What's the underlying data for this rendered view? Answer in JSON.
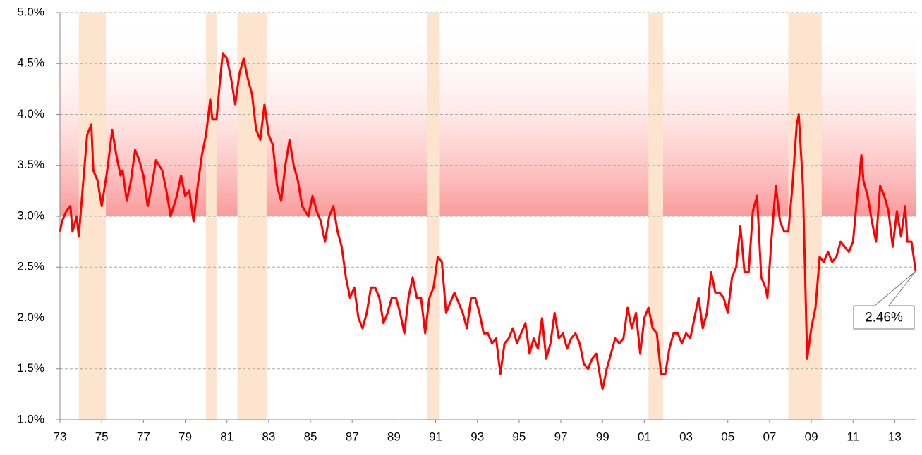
{
  "chart_data": {
    "type": "line",
    "xlim": [
      1973,
      2014
    ],
    "xticks": [
      {
        "value": 1973,
        "label": "73"
      },
      {
        "value": 1975,
        "label": "75"
      },
      {
        "value": 1977,
        "label": "77"
      },
      {
        "value": 1979,
        "label": "79"
      },
      {
        "value": 1981,
        "label": "81"
      },
      {
        "value": 1983,
        "label": "83"
      },
      {
        "value": 1985,
        "label": "85"
      },
      {
        "value": 1987,
        "label": "87"
      },
      {
        "value": 1989,
        "label": "89"
      },
      {
        "value": 1991,
        "label": "91"
      },
      {
        "value": 1993,
        "label": "93"
      },
      {
        "value": 1995,
        "label": "95"
      },
      {
        "value": 1997,
        "label": "97"
      },
      {
        "value": 1999,
        "label": "99"
      },
      {
        "value": 2001,
        "label": "01"
      },
      {
        "value": 2003,
        "label": "03"
      },
      {
        "value": 2005,
        "label": "05"
      },
      {
        "value": 2007,
        "label": "07"
      },
      {
        "value": 2009,
        "label": "09"
      },
      {
        "value": 2011,
        "label": "11"
      },
      {
        "value": 2013,
        "label": "13"
      }
    ],
    "ylim": [
      1.0,
      5.0
    ],
    "yticks": [
      {
        "value": 1.0,
        "label": "1.0%"
      },
      {
        "value": 1.5,
        "label": "1.5%"
      },
      {
        "value": 2.0,
        "label": "2.0%"
      },
      {
        "value": 2.5,
        "label": "2.5%"
      },
      {
        "value": 3.0,
        "label": "3.0%"
      },
      {
        "value": 3.5,
        "label": "3.5%"
      },
      {
        "value": 4.0,
        "label": "4.0%"
      },
      {
        "value": 4.5,
        "label": "4.5%"
      },
      {
        "value": 5.0,
        "label": "5.0%"
      }
    ],
    "grid": true,
    "highlight_above": 3.0,
    "recessions": [
      [
        1973.9,
        1975.2
      ],
      [
        1980.0,
        1980.5
      ],
      [
        1981.5,
        1982.9
      ],
      [
        1990.6,
        1991.2
      ],
      [
        2001.2,
        2001.9
      ],
      [
        2007.9,
        2009.5
      ]
    ],
    "recession_color": "#fde4cf",
    "annotation": {
      "label": "2.46%",
      "x": 2014.0,
      "y": 2.46
    },
    "series": [
      {
        "color": "#ff0000",
        "x": [
          1973.0,
          1973.1,
          1973.3,
          1973.5,
          1973.6,
          1973.8,
          1973.9,
          1974.1,
          1974.3,
          1974.5,
          1974.6,
          1974.8,
          1975.0,
          1975.3,
          1975.5,
          1975.7,
          1975.9,
          1976.0,
          1976.2,
          1976.4,
          1976.6,
          1976.8,
          1977.0,
          1977.2,
          1977.4,
          1977.6,
          1977.9,
          1978.1,
          1978.3,
          1978.6,
          1978.8,
          1979.0,
          1979.2,
          1979.4,
          1979.6,
          1979.8,
          1980.0,
          1980.2,
          1980.3,
          1980.5,
          1980.7,
          1980.8,
          1981.0,
          1981.2,
          1981.4,
          1981.6,
          1981.8,
          1982.0,
          1982.2,
          1982.4,
          1982.6,
          1982.8,
          1983.0,
          1983.2,
          1983.4,
          1983.6,
          1983.8,
          1984.0,
          1984.2,
          1984.4,
          1984.6,
          1984.9,
          1985.1,
          1985.3,
          1985.5,
          1985.7,
          1985.9,
          1986.1,
          1986.3,
          1986.5,
          1986.7,
          1986.9,
          1987.1,
          1987.3,
          1987.5,
          1987.7,
          1987.9,
          1988.1,
          1988.3,
          1988.5,
          1988.7,
          1988.9,
          1989.1,
          1989.3,
          1989.5,
          1989.7,
          1989.9,
          1990.1,
          1990.3,
          1990.5,
          1990.7,
          1990.9,
          1991.1,
          1991.3,
          1991.5,
          1991.7,
          1991.9,
          1992.1,
          1992.3,
          1992.5,
          1992.7,
          1992.9,
          1993.1,
          1993.3,
          1993.5,
          1993.7,
          1993.9,
          1994.1,
          1994.3,
          1994.5,
          1994.7,
          1994.9,
          1995.1,
          1995.3,
          1995.5,
          1995.7,
          1995.9,
          1996.1,
          1996.3,
          1996.5,
          1996.7,
          1996.9,
          1997.1,
          1997.3,
          1997.5,
          1997.7,
          1997.9,
          1998.1,
          1998.3,
          1998.5,
          1998.7,
          1998.9,
          1999.0,
          1999.2,
          1999.4,
          1999.6,
          1999.8,
          2000.0,
          2000.2,
          2000.4,
          2000.6,
          2000.8,
          2001.0,
          2001.2,
          2001.4,
          2001.6,
          2001.8,
          2002.0,
          2002.2,
          2002.4,
          2002.6,
          2002.8,
          2003.0,
          2003.2,
          2003.4,
          2003.6,
          2003.8,
          2004.0,
          2004.2,
          2004.4,
          2004.6,
          2004.8,
          2005.0,
          2005.2,
          2005.4,
          2005.6,
          2005.8,
          2006.0,
          2006.2,
          2006.4,
          2006.6,
          2006.8,
          2006.9,
          2007.1,
          2007.3,
          2007.5,
          2007.7,
          2007.9,
          2008.1,
          2008.3,
          2008.4,
          2008.6,
          2008.8,
          2009.0,
          2009.2,
          2009.4,
          2009.6,
          2009.8,
          2010.0,
          2010.2,
          2010.4,
          2010.6,
          2010.8,
          2011.0,
          2011.2,
          2011.4,
          2011.5,
          2011.7,
          2011.9,
          2012.1,
          2012.3,
          2012.5,
          2012.7,
          2012.9,
          2013.1,
          2013.3,
          2013.5,
          2013.6,
          2013.8,
          2014.0
        ],
        "values": [
          2.85,
          2.95,
          3.05,
          3.1,
          2.85,
          3.0,
          2.8,
          3.3,
          3.8,
          3.9,
          3.45,
          3.35,
          3.1,
          3.5,
          3.85,
          3.6,
          3.4,
          3.45,
          3.15,
          3.35,
          3.65,
          3.55,
          3.4,
          3.1,
          3.3,
          3.55,
          3.45,
          3.25,
          3.0,
          3.2,
          3.4,
          3.2,
          3.25,
          2.95,
          3.3,
          3.6,
          3.8,
          4.15,
          3.95,
          3.95,
          4.4,
          4.6,
          4.55,
          4.35,
          4.1,
          4.4,
          4.55,
          4.35,
          4.2,
          3.85,
          3.75,
          4.1,
          3.8,
          3.7,
          3.3,
          3.15,
          3.5,
          3.75,
          3.5,
          3.35,
          3.1,
          3.0,
          3.2,
          3.05,
          2.95,
          2.75,
          3.0,
          3.1,
          2.85,
          2.7,
          2.4,
          2.2,
          2.3,
          2.0,
          1.9,
          2.05,
          2.3,
          2.3,
          2.2,
          1.95,
          2.05,
          2.2,
          2.2,
          2.05,
          1.85,
          2.2,
          2.4,
          2.2,
          2.2,
          1.85,
          2.2,
          2.3,
          2.6,
          2.55,
          2.05,
          2.15,
          2.25,
          2.15,
          2.05,
          1.9,
          2.2,
          2.2,
          2.05,
          1.85,
          1.85,
          1.75,
          1.8,
          1.45,
          1.75,
          1.8,
          1.9,
          1.75,
          1.85,
          1.95,
          1.65,
          1.8,
          1.7,
          2.0,
          1.6,
          1.75,
          2.05,
          1.8,
          1.85,
          1.7,
          1.8,
          1.85,
          1.75,
          1.55,
          1.5,
          1.6,
          1.65,
          1.4,
          1.3,
          1.5,
          1.65,
          1.8,
          1.75,
          1.8,
          2.1,
          1.9,
          2.05,
          1.65,
          2.0,
          2.1,
          1.9,
          1.85,
          1.45,
          1.45,
          1.7,
          1.85,
          1.85,
          1.75,
          1.85,
          1.8,
          2.0,
          2.2,
          1.9,
          2.05,
          2.45,
          2.25,
          2.25,
          2.2,
          2.05,
          2.4,
          2.5,
          2.9,
          2.45,
          2.45,
          3.05,
          3.2,
          2.4,
          2.3,
          2.2,
          2.8,
          3.3,
          2.95,
          2.85,
          2.85,
          3.3,
          3.9,
          4.0,
          3.3,
          1.6,
          1.9,
          2.1,
          2.6,
          2.55,
          2.65,
          2.55,
          2.6,
          2.75,
          2.7,
          2.65,
          2.75,
          3.2,
          3.6,
          3.35,
          3.2,
          2.95,
          2.75,
          3.3,
          3.2,
          3.05,
          2.7,
          3.05,
          2.8,
          3.1,
          2.75,
          2.75,
          2.46
        ]
      }
    ]
  }
}
